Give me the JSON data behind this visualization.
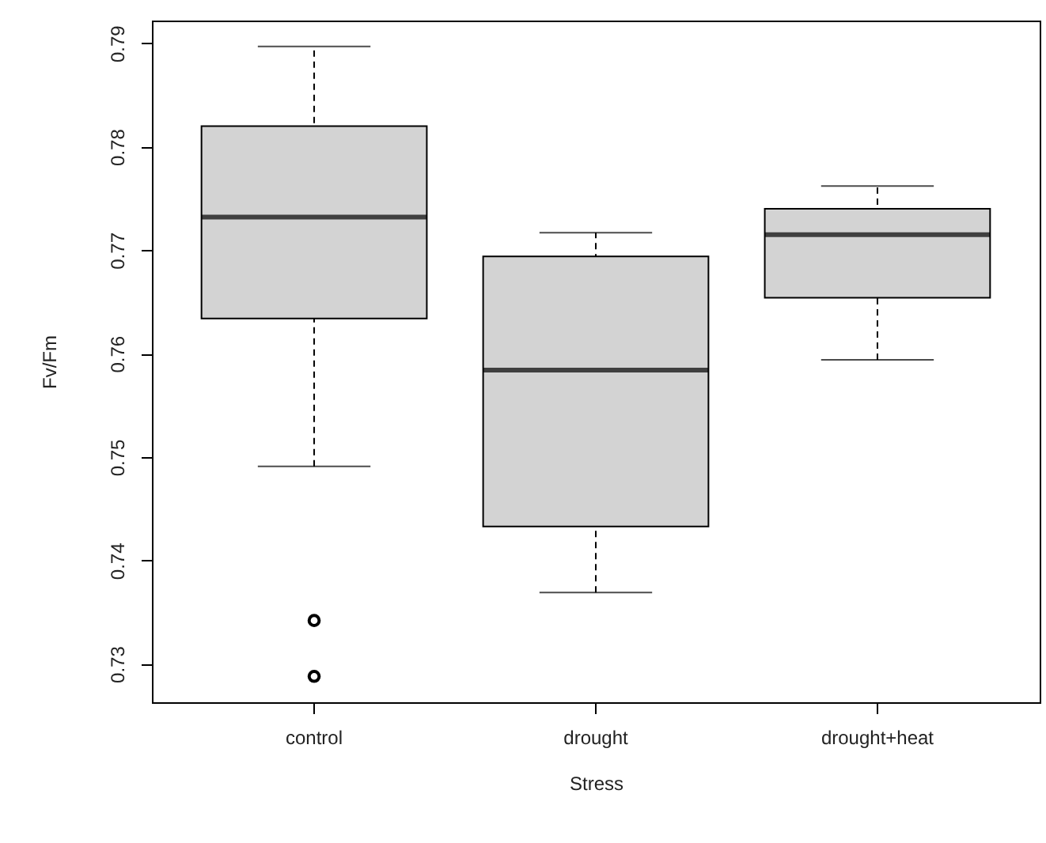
{
  "chart_data": {
    "type": "box",
    "xlabel": "Stress",
    "ylabel": "Fv/Fm",
    "categories": [
      "control",
      "drought",
      "drought+heat"
    ],
    "colors": [
      "#d3d3d3",
      "#d3d3d3",
      "#d3d3d3"
    ],
    "boxes": [
      {
        "low": 0.7491,
        "q1": 0.7634,
        "median": 0.7732,
        "q3": 0.782,
        "high": 0.7897,
        "outliers": [
          0.7342,
          0.7288
        ]
      },
      {
        "low": 0.7369,
        "q1": 0.7433,
        "median": 0.7584,
        "q3": 0.7694,
        "high": 0.7717
      },
      {
        "low": 0.7594,
        "q1": 0.7654,
        "median": 0.7715,
        "q3": 0.774,
        "high": 0.7762
      }
    ],
    "ylim": [
      0.7263,
      0.7922
    ],
    "yticks": [
      0.73,
      0.74,
      0.75,
      0.76,
      0.77,
      0.78,
      0.79
    ]
  }
}
